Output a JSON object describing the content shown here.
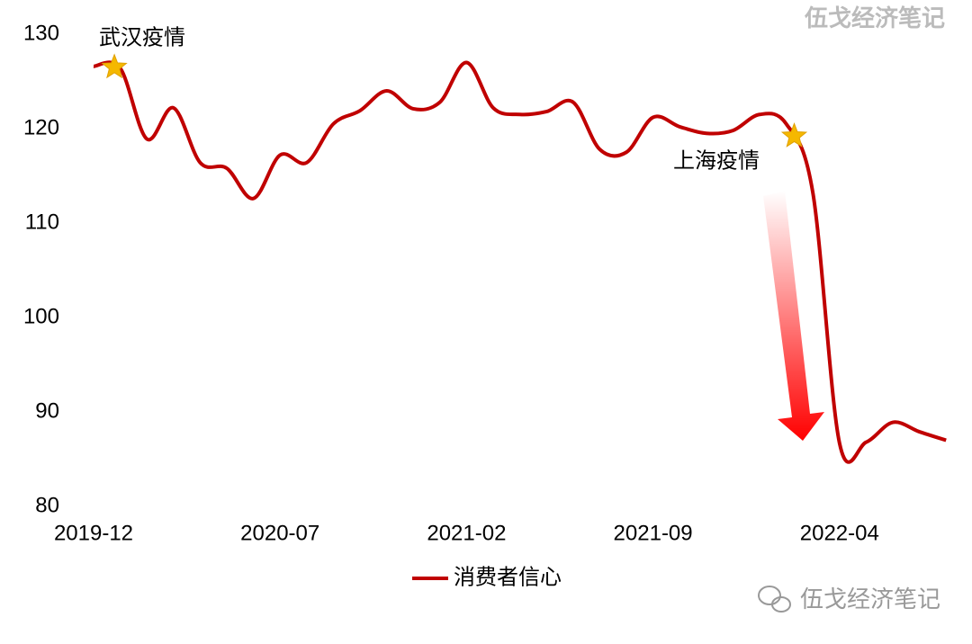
{
  "chart_data": {
    "type": "line",
    "watermark": "伍戈经济笔记",
    "categories": [
      "2019-12",
      null,
      null,
      null,
      null,
      null,
      null,
      "2020-07",
      null,
      null,
      null,
      null,
      null,
      null,
      "2021-02",
      null,
      null,
      null,
      null,
      null,
      null,
      "2021-09",
      null,
      null,
      null,
      null,
      null,
      null,
      "2022-04",
      null,
      null,
      null,
      null
    ],
    "series": [
      {
        "name": "消费者信心",
        "color": "#c00000",
        "values": [
          126.6,
          126.4,
          118.9,
          122.2,
          116.4,
          115.8,
          112.6,
          117.2,
          116.4,
          120.5,
          121.9,
          124.0,
          122.1,
          122.8,
          127.0,
          122.2,
          121.5,
          121.8,
          122.8,
          117.8,
          117.5,
          121.2,
          120.2,
          119.5,
          119.8,
          121.5,
          120.5,
          113.2,
          86.7,
          86.8,
          88.9,
          87.9,
          87.0
        ]
      }
    ],
    "annotations": [
      "武汉疫情",
      "上海疫情"
    ],
    "ylim": [
      80,
      130
    ],
    "yticks": [
      80,
      90,
      100,
      110,
      120,
      130
    ],
    "grid": false,
    "legend": "bottom"
  }
}
